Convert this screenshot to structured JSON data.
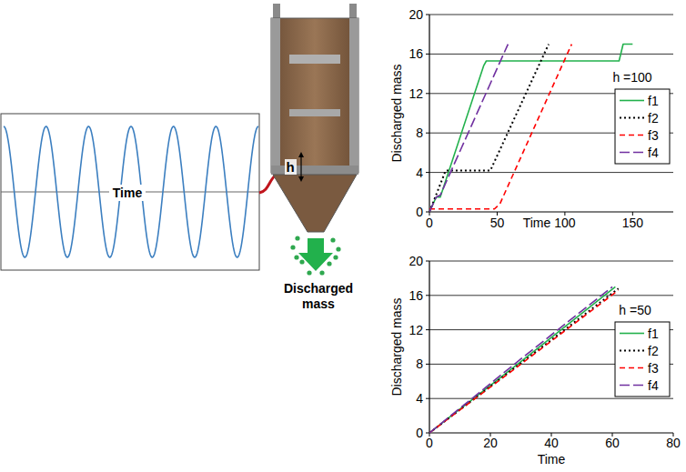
{
  "diagram": {
    "signal_label": "Time",
    "gap_label": "h",
    "output_label": "Discharged mass"
  },
  "chart_data": [
    {
      "type": "line",
      "annotation": "h =100",
      "x_label": "Time",
      "y_label": "Discharged mass",
      "xlim": [
        0,
        180
      ],
      "xticks": [
        0,
        50,
        100,
        150
      ],
      "ylim": [
        0,
        20
      ],
      "yticks": [
        0,
        4,
        8,
        12,
        16,
        20
      ],
      "grid": true,
      "legend": "right",
      "series": [
        {
          "name": "f1",
          "color": "#22b14c",
          "line_style": "solid",
          "x": [
            0,
            5,
            8,
            40,
            42,
            55,
            140,
            143,
            150
          ],
          "values": [
            0,
            1.5,
            1.5,
            14.8,
            15.3,
            15.3,
            15.3,
            17,
            17
          ]
        },
        {
          "name": "f2",
          "color": "#000000",
          "line_style": "dotted",
          "x": [
            0,
            12,
            45,
            88
          ],
          "values": [
            0,
            4.2,
            4.2,
            17
          ]
        },
        {
          "name": "f3",
          "color": "#ff0000",
          "line_style": "dashed",
          "x": [
            0,
            48,
            52,
            105
          ],
          "values": [
            0.3,
            0.3,
            0.8,
            17
          ]
        },
        {
          "name": "f4",
          "color": "#7030a0",
          "line_style": "long_dashed",
          "x": [
            0,
            5,
            8,
            58
          ],
          "values": [
            0,
            1.5,
            1.7,
            17
          ]
        }
      ]
    },
    {
      "type": "line",
      "annotation": "h =50",
      "x_label": "Time",
      "y_label": "Discharged mass",
      "xlim": [
        0,
        80
      ],
      "xticks": [
        0,
        20,
        40,
        60,
        80
      ],
      "ylim": [
        0,
        20
      ],
      "yticks": [
        0,
        4,
        8,
        12,
        16,
        20
      ],
      "grid": true,
      "legend": "right",
      "series": [
        {
          "name": "f1",
          "color": "#22b14c",
          "line_style": "solid",
          "x": [
            0,
            30,
            61
          ],
          "values": [
            0,
            8.3,
            17
          ]
        },
        {
          "name": "f2",
          "color": "#000000",
          "line_style": "dotted",
          "x": [
            0,
            30,
            62
          ],
          "values": [
            0,
            8.1,
            16.8
          ]
        },
        {
          "name": "f3",
          "color": "#ff0000",
          "line_style": "dashed",
          "x": [
            0,
            30,
            62
          ],
          "values": [
            0,
            8.0,
            16.6
          ]
        },
        {
          "name": "f4",
          "color": "#7030a0",
          "line_style": "long_dashed",
          "x": [
            0,
            30,
            60
          ],
          "values": [
            0,
            8.6,
            17
          ]
        }
      ]
    }
  ]
}
